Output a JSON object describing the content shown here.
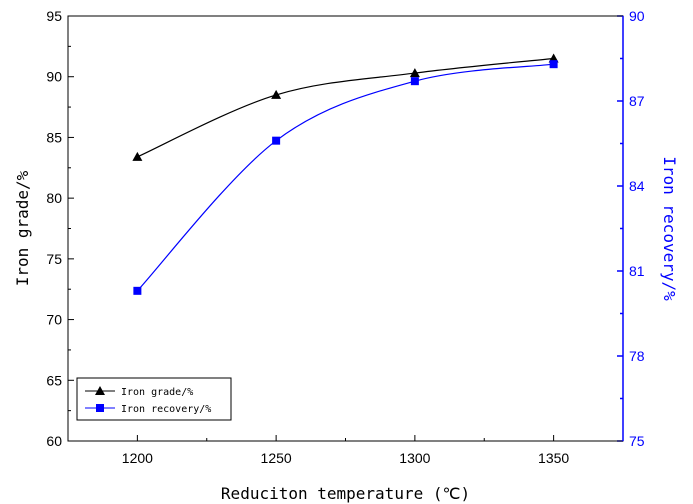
{
  "chart_data": {
    "type": "line",
    "xlabel": "Reduciton temperature (℃)",
    "ylabel_left": "Iron grade/%",
    "ylabel_right": "Iron recovery/%",
    "x": [
      1200,
      1250,
      1300,
      1350
    ],
    "xlim": [
      1175,
      1375
    ],
    "xticks": [
      1200,
      1250,
      1300,
      1350
    ],
    "ylim_left": [
      60,
      95
    ],
    "yticks_left": [
      60,
      65,
      70,
      75,
      80,
      85,
      90,
      95
    ],
    "ylim_right": [
      75,
      90
    ],
    "yticks_right": [
      75,
      78,
      81,
      84,
      87,
      90
    ],
    "grid": false,
    "legend_position": "bottom-left",
    "series": [
      {
        "name": "Iron grade/%",
        "axis": "left",
        "marker": "triangle",
        "color": "#000000",
        "values": [
          83.4,
          88.5,
          90.3,
          91.5
        ]
      },
      {
        "name": "Iron recovery/%",
        "axis": "right",
        "marker": "square",
        "color": "#0000ff",
        "values": [
          80.3,
          85.6,
          87.7,
          88.3
        ]
      }
    ]
  }
}
